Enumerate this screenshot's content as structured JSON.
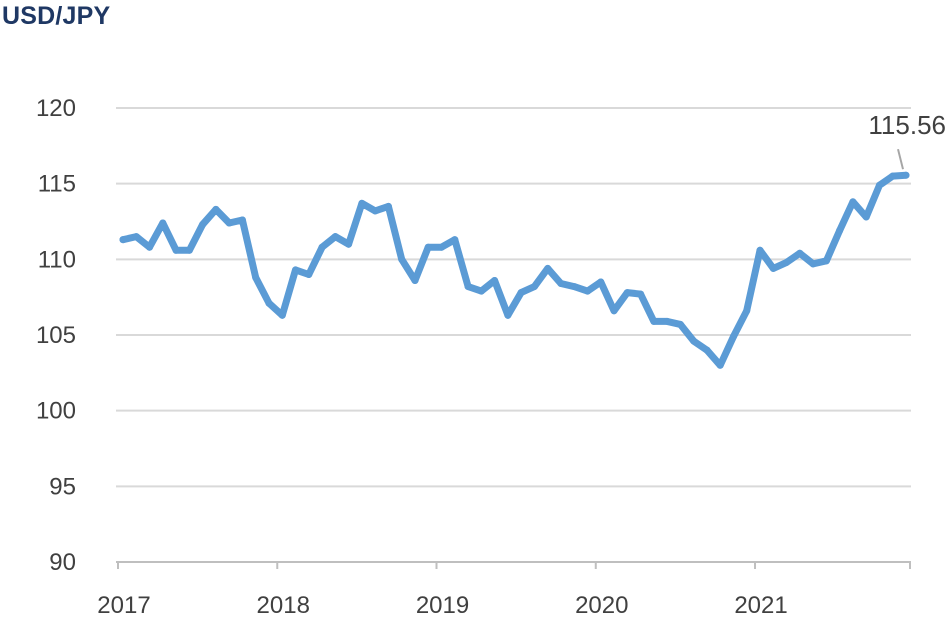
{
  "chart_data": {
    "type": "line",
    "title": "USD/JPY",
    "xlabel": "",
    "ylabel": "",
    "ylim": [
      90,
      120
    ],
    "yticks": [
      90,
      95,
      100,
      105,
      110,
      115,
      120
    ],
    "xticks": [
      "2017",
      "2018",
      "2019",
      "2020",
      "2021"
    ],
    "grid": true,
    "line_color": "#5b9bd5",
    "series": [
      {
        "name": "",
        "values": [
          111.3,
          111.5,
          110.8,
          112.4,
          110.6,
          110.6,
          112.3,
          113.3,
          112.4,
          112.6,
          108.8,
          107.1,
          106.3,
          109.3,
          109.0,
          110.8,
          111.5,
          111.0,
          113.7,
          113.2,
          113.5,
          110.0,
          108.6,
          110.8,
          110.8,
          111.3,
          108.2,
          107.9,
          108.6,
          106.3,
          107.8,
          108.2,
          109.4,
          108.4,
          108.2,
          107.9,
          108.5,
          106.6,
          107.8,
          107.7,
          105.9,
          105.9,
          105.7,
          104.6,
          104.0,
          103.0,
          104.9,
          106.6,
          110.6,
          109.4,
          109.8,
          110.4,
          109.7,
          109.9,
          111.9,
          113.8,
          112.8,
          114.9,
          115.5,
          115.56
        ]
      }
    ],
    "x_start": "2017-01",
    "x_interval": "monthly",
    "annotations": [
      {
        "text": "115.56",
        "target": "last-point"
      }
    ]
  }
}
